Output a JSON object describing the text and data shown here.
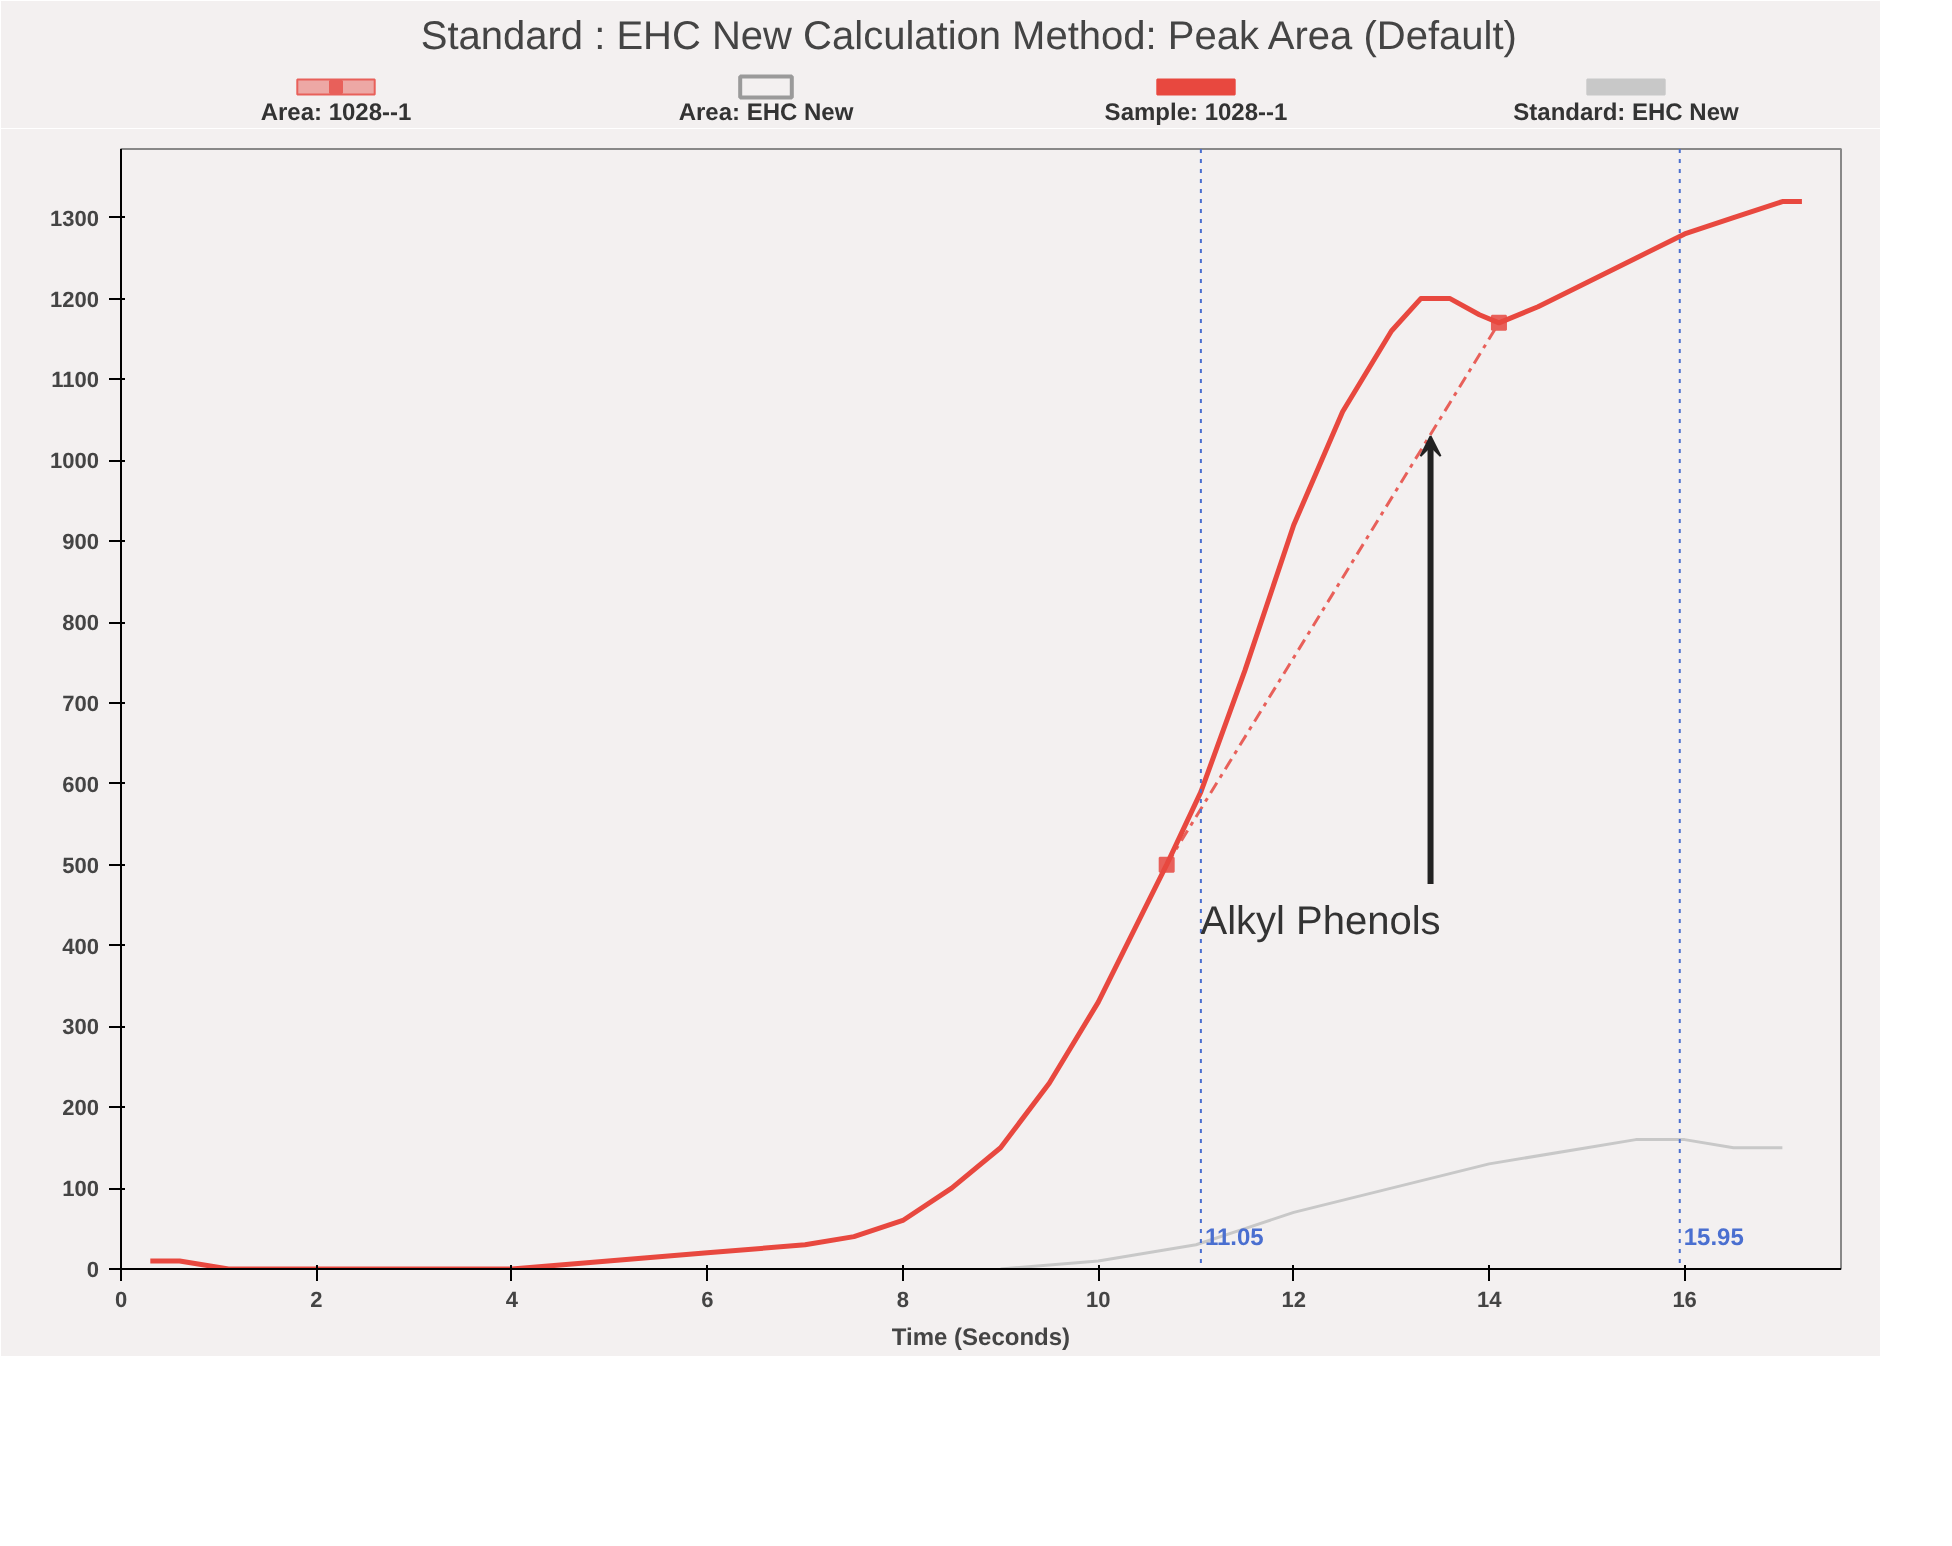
{
  "chart_data": {
    "type": "line",
    "title": "Standard : EHC New   Calculation Method: Peak Area (Default)",
    "xlabel": "Time (Seconds)",
    "xlim": [
      0,
      17.6
    ],
    "xticks": [
      0,
      2,
      4,
      6,
      8,
      10,
      12,
      14,
      16
    ],
    "ylim": [
      0,
      1385
    ],
    "yticks": [
      0,
      100,
      200,
      300,
      400,
      500,
      600,
      700,
      800,
      900,
      1000,
      1100,
      1200,
      1300
    ],
    "grid": false,
    "legend": "top",
    "series": [
      {
        "name": "Area: 1028--1",
        "color": "#e8605a",
        "marker": "square",
        "line_style": "dashed",
        "x": [
          10.7,
          14.1
        ],
        "values": [
          500,
          1170
        ]
      },
      {
        "name": "Area: EHC New",
        "color": "#9a9a9a"
      },
      {
        "name": "Sample: 1028--1",
        "color": "#e8483f",
        "x": [
          0.3,
          0.6,
          1.1,
          2,
          4,
          6,
          7,
          7.5,
          8,
          8.5,
          9,
          9.5,
          10,
          10.7,
          11.05,
          11.5,
          12,
          12.5,
          13,
          13.3,
          13.6,
          13.9,
          14.1,
          14.5,
          15,
          15.5,
          16,
          16.5,
          17,
          17.2
        ],
        "values": [
          10,
          10,
          0,
          0,
          0,
          20,
          30,
          40,
          60,
          100,
          150,
          230,
          330,
          500,
          590,
          740,
          920,
          1060,
          1160,
          1200,
          1200,
          1180,
          1170,
          1190,
          1220,
          1250,
          1280,
          1300,
          1320,
          1320
        ]
      },
      {
        "name": "Standard: EHC New",
        "color": "#c8c8c8",
        "x": [
          9,
          10,
          11,
          11.5,
          12,
          13,
          14,
          15,
          15.5,
          16,
          16.5,
          17
        ],
        "values": [
          0,
          10,
          30,
          50,
          70,
          100,
          130,
          150,
          160,
          160,
          150,
          150
        ]
      }
    ],
    "ref_lines": [
      {
        "axis": "x",
        "value": 11.05,
        "label": "11.05",
        "color": "#4a6fd0",
        "line_style": "dotted"
      },
      {
        "axis": "x",
        "value": 15.95,
        "label": "15.95",
        "color": "#4a6fd0",
        "line_style": "dotted"
      }
    ],
    "annotations": [
      {
        "text": "Alkyl Phenols",
        "x": 13.4,
        "y": 1030
      }
    ]
  }
}
